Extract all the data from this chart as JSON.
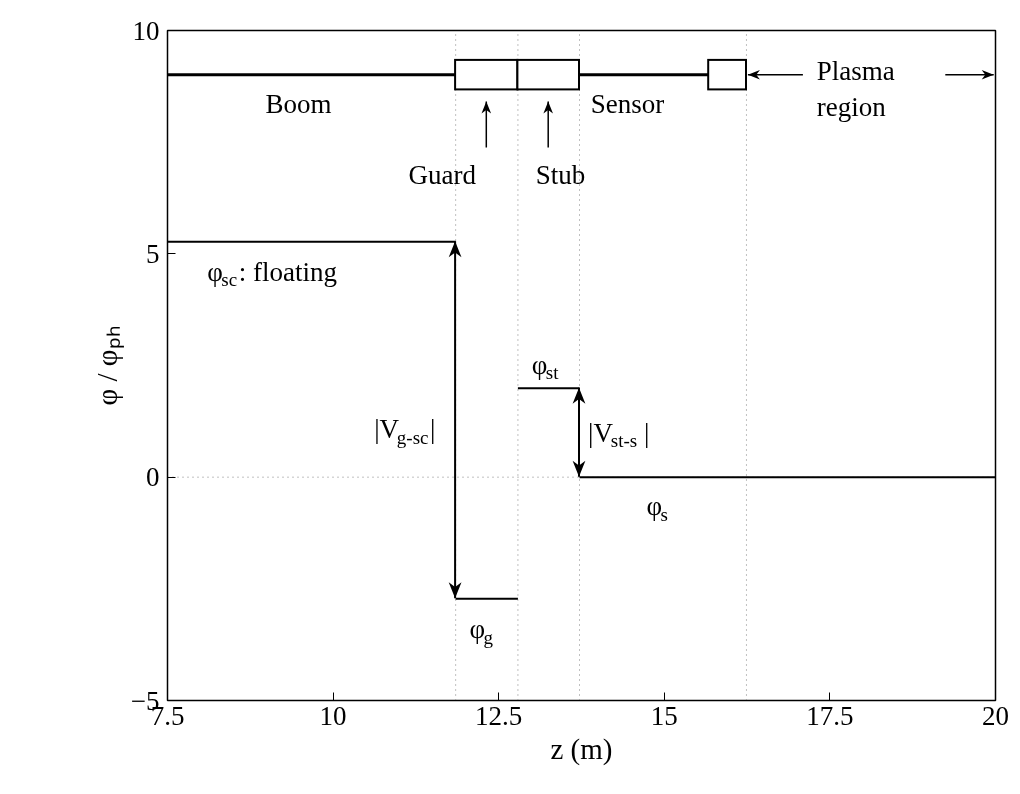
{
  "chart_data": {
    "type": "line",
    "xlabel": "z (m)",
    "ylabel": "φ / φₚₕ",
    "xlim": [
      7.5,
      20
    ],
    "ylim": [
      -5,
      10
    ],
    "xticks": [
      7.5,
      10,
      12.5,
      15,
      17.5,
      20
    ],
    "yticks": [
      -5,
      0,
      5,
      10
    ],
    "grid": false,
    "marker": "none",
    "line_style": "solid",
    "series": [
      {
        "color": "#000000",
        "x": [
          7.5,
          11.85
        ],
        "values": [
          5.27,
          5.27
        ]
      },
      {
        "color": "#000000",
        "x": [
          11.85,
          12.79
        ],
        "values": [
          -2.72,
          -2.72
        ]
      },
      {
        "color": "#000000",
        "x": [
          12.79,
          13.72
        ],
        "values": [
          1.99,
          1.99
        ]
      },
      {
        "color": "#000000",
        "x": [
          13.72,
          20
        ],
        "values": [
          0,
          0
        ]
      }
    ],
    "ref_lines": [
      {
        "axis": "x",
        "value": 11.85,
        "color": "#808080",
        "line_style": "dotted"
      },
      {
        "axis": "x",
        "value": 12.79,
        "color": "#808080",
        "line_style": "dotted"
      },
      {
        "axis": "x",
        "value": 13.72,
        "color": "#808080",
        "line_style": "dotted"
      },
      {
        "axis": "x",
        "value": 16.24,
        "color": "#808080",
        "line_style": "dotted"
      },
      {
        "axis": "y",
        "value": 0,
        "color": "#808080",
        "line_style": "dotted"
      }
    ],
    "annotations": [
      "Boom",
      "Guard",
      "Stub",
      "Sensor",
      "Plasma region",
      {
        "text": "φ$_{sc}$: floating",
        "x": 9.7,
        "y": 5.27
      },
      {
        "text": "|V$_{g-sc}$|",
        "x": 11.85,
        "y": 1.27
      },
      {
        "text": "φ$_{st}$",
        "x": 13.25,
        "y": 1.99
      },
      {
        "text": "|V$_{st-s}$|",
        "x": 13.72,
        "y": 1.0
      },
      {
        "text": "φ$_{s}$",
        "x": 15,
        "y": 0
      },
      {
        "text": "φ$_{g}$",
        "x": 12.32,
        "y": -2.72
      }
    ]
  }
}
